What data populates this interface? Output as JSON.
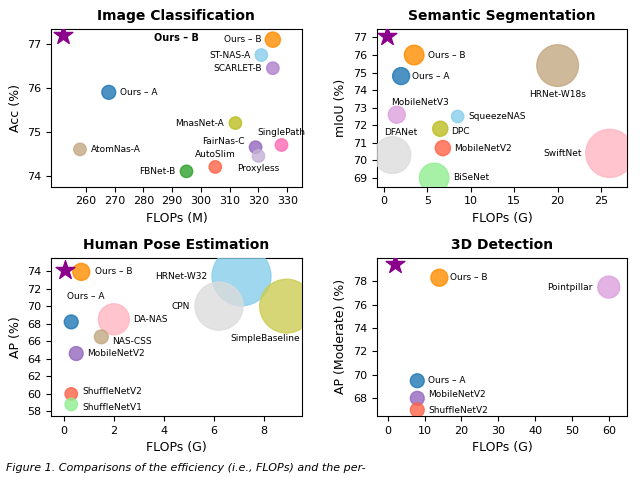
{
  "chart_data": [
    {
      "type": "scatter",
      "title": "Image Classification",
      "x_label": "FLOPs (M)",
      "y_label": "Acc (%)",
      "xlim": [
        248,
        335
      ],
      "ylim": [
        73.75,
        77.35
      ],
      "xticks": [
        260,
        270,
        280,
        290,
        300,
        310,
        320,
        330
      ],
      "yticks": [
        74,
        75,
        76,
        77
      ],
      "annotations": [
        "Ours – B"
      ],
      "series": [
        {
          "labels": [
            "Ours – B",
            "Ours – A",
            "ST-NAS-A",
            "SCARLET-B",
            "MnasNet-A",
            "SinglePath",
            "FairNas-C",
            "Proxyless",
            "FBNet-B",
            "AutoSlim",
            "AtomNas-A"
          ],
          "x": [
            325,
            268,
            321,
            325,
            312,
            328,
            319,
            320,
            295,
            305,
            258
          ],
          "values": [
            77.1,
            75.9,
            76.75,
            76.45,
            75.2,
            74.7,
            74.65,
            74.45,
            74.1,
            74.2,
            74.6
          ],
          "sizes": [
            120,
            100,
            80,
            80,
            80,
            80,
            80,
            80,
            80,
            80,
            80
          ],
          "colors": [
            "#FF8C00",
            "#1f77b4",
            "#87CEEB",
            "#b07fcc",
            "#bcbd22",
            "#FF69B4",
            "#9467bd",
            "#c5b0d5",
            "#2ca02c",
            "#FF6347",
            "#C4A882"
          ]
        },
        {
          "marker": "star",
          "color": "#8B008B",
          "x": [
            252
          ],
          "values": [
            77.2
          ]
        }
      ]
    },
    {
      "type": "scatter",
      "title": "Semantic Segmentation",
      "x_label": "FLOPs (G)",
      "y_label": "mIoU (%)",
      "xlim": [
        -0.8,
        28
      ],
      "ylim": [
        68.5,
        77.5
      ],
      "xticks": [
        0,
        5,
        10,
        15,
        20,
        25
      ],
      "yticks": [
        69,
        70,
        71,
        72,
        73,
        74,
        75,
        76,
        77
      ],
      "series": [
        {
          "labels": [
            "Ours – B",
            "Ours – A",
            "HRNet-W18s",
            "MobileNetV3",
            "SqueezeNAS",
            "DPC",
            "MobileNetV2",
            "SwiftNet",
            "DFANet",
            "BiSeNet"
          ],
          "x": [
            3.5,
            2.0,
            20.0,
            1.5,
            8.5,
            6.5,
            6.8,
            26.0,
            1.0,
            5.8
          ],
          "values": [
            76.0,
            74.8,
            75.4,
            72.6,
            72.5,
            71.8,
            70.7,
            70.4,
            70.3,
            69.0
          ],
          "sizes": [
            200,
            150,
            900,
            150,
            80,
            120,
            120,
            1200,
            700,
            450
          ],
          "colors": [
            "#FF8C00",
            "#1f77b4",
            "#C4A882",
            "#DDA0DD",
            "#87CEEB",
            "#bcbd22",
            "#FF6347",
            "#FFB6C1",
            "#DCDCDC",
            "#90EE90"
          ]
        },
        {
          "marker": "star",
          "color": "#8B008B",
          "x": [
            0.4
          ],
          "values": [
            77.1
          ]
        }
      ]
    },
    {
      "type": "scatter",
      "title": "Human Pose Estimation",
      "x_label": "FLOPs (G)",
      "y_label": "AP (%)",
      "xlim": [
        -0.5,
        9.5
      ],
      "ylim": [
        57.5,
        75.5
      ],
      "xticks": [
        0,
        2,
        4,
        6,
        8
      ],
      "yticks": [
        58,
        60,
        62,
        64,
        66,
        68,
        70,
        72,
        74
      ],
      "series": [
        {
          "labels": [
            "Ours – B",
            "Ours – A",
            "HRNet-W32",
            "CPN",
            "SimpleBaseline",
            "DA-NAS",
            "NAS-CSS",
            "MobileNetV2",
            "ShuffleNetV2",
            "ShuffleNetV1"
          ],
          "x": [
            0.7,
            0.3,
            7.1,
            6.2,
            8.9,
            2.0,
            1.5,
            0.5,
            0.3,
            0.3
          ],
          "values": [
            73.9,
            68.2,
            73.4,
            70.0,
            70.0,
            68.5,
            66.5,
            64.6,
            60.0,
            58.8
          ],
          "sizes": [
            150,
            100,
            1800,
            1200,
            1500,
            500,
            100,
            100,
            80,
            80
          ],
          "colors": [
            "#FF8C00",
            "#1f77b4",
            "#87CEEB",
            "#DCDCDC",
            "#CCCC55",
            "#FFB6C1",
            "#C4A882",
            "#9467bd",
            "#FF6347",
            "#90EE90"
          ]
        },
        {
          "marker": "star",
          "color": "#8B008B",
          "x": [
            0.05
          ],
          "values": [
            74.1
          ]
        }
      ]
    },
    {
      "type": "scatter",
      "title": "3D Detection",
      "x_label": "FLOPs (G)",
      "y_label": "AP (Moderate) (%)",
      "xlim": [
        -3,
        65
      ],
      "ylim": [
        66.5,
        80
      ],
      "xticks": [
        0,
        10,
        20,
        30,
        40,
        50,
        60
      ],
      "yticks": [
        68,
        70,
        72,
        74,
        76,
        78
      ],
      "series": [
        {
          "labels": [
            "Ours – B",
            "Ours – A",
            "Pointpillar",
            "MobileNetV2",
            "ShuffleNetV2"
          ],
          "x": [
            14,
            8,
            60,
            8,
            8
          ],
          "values": [
            78.3,
            69.5,
            77.5,
            68.0,
            67.0
          ],
          "sizes": [
            150,
            100,
            250,
            100,
            100
          ],
          "colors": [
            "#FF8C00",
            "#1f77b4",
            "#DDA0DD",
            "#9467bd",
            "#FF6347"
          ]
        },
        {
          "marker": "star",
          "color": "#8B008B",
          "x": [
            2
          ],
          "values": [
            79.5
          ]
        }
      ]
    }
  ],
  "caption": "Figure 1. Comparisons of the efficiency (i.e., FLOPs) and the per-"
}
